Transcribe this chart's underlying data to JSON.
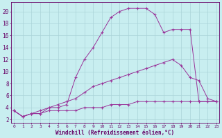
{
  "bg_color": "#c8eef0",
  "line_color": "#993399",
  "grid_color": "#aad4d8",
  "xlabel": "Windchill (Refroidissement éolien,°C)",
  "xlabel_color": "#660066",
  "tick_color": "#660066",
  "yticks": [
    2,
    4,
    6,
    8,
    10,
    12,
    14,
    16,
    18,
    20
  ],
  "xticks": [
    0,
    1,
    2,
    3,
    4,
    5,
    6,
    7,
    8,
    9,
    10,
    11,
    12,
    13,
    14,
    15,
    16,
    17,
    18,
    19,
    20,
    21,
    22,
    23
  ],
  "xlim": [
    -0.3,
    23.3
  ],
  "ylim": [
    1.5,
    21.5
  ],
  "series1_x": [
    0,
    1,
    2,
    3,
    4,
    5,
    6,
    7,
    8,
    9,
    10,
    11,
    12,
    13,
    14,
    15,
    16,
    17,
    18,
    19,
    20,
    21,
    22,
    23
  ],
  "series1_y": [
    3.5,
    2.5,
    3.0,
    3.0,
    4.0,
    4.0,
    4.5,
    9.0,
    12.0,
    14.0,
    16.5,
    19.0,
    20.0,
    20.5,
    20.5,
    20.5,
    19.5,
    16.5,
    17.0,
    17.0,
    17.0,
    5.0,
    5.0,
    5.0
  ],
  "series2_x": [
    0,
    1,
    2,
    3,
    4,
    5,
    6,
    7,
    8,
    9,
    10,
    11,
    12,
    13,
    14,
    15,
    16,
    17,
    18,
    19,
    20,
    21,
    22,
    23
  ],
  "series2_y": [
    3.5,
    2.5,
    3.0,
    3.5,
    4.0,
    4.5,
    5.0,
    5.5,
    6.5,
    7.5,
    8.0,
    8.5,
    9.0,
    9.5,
    10.0,
    10.5,
    11.0,
    11.5,
    12.0,
    11.0,
    9.0,
    8.5,
    5.5,
    5.0
  ],
  "series3_x": [
    0,
    1,
    2,
    3,
    4,
    5,
    6,
    7,
    8,
    9,
    10,
    11,
    12,
    13,
    14,
    15,
    16,
    17,
    18,
    19,
    20,
    21,
    22,
    23
  ],
  "series3_y": [
    3.5,
    2.5,
    3.0,
    3.0,
    3.5,
    3.5,
    3.5,
    3.5,
    4.0,
    4.0,
    4.0,
    4.5,
    4.5,
    4.5,
    5.0,
    5.0,
    5.0,
    5.0,
    5.0,
    5.0,
    5.0,
    5.0,
    5.0,
    5.0
  ]
}
